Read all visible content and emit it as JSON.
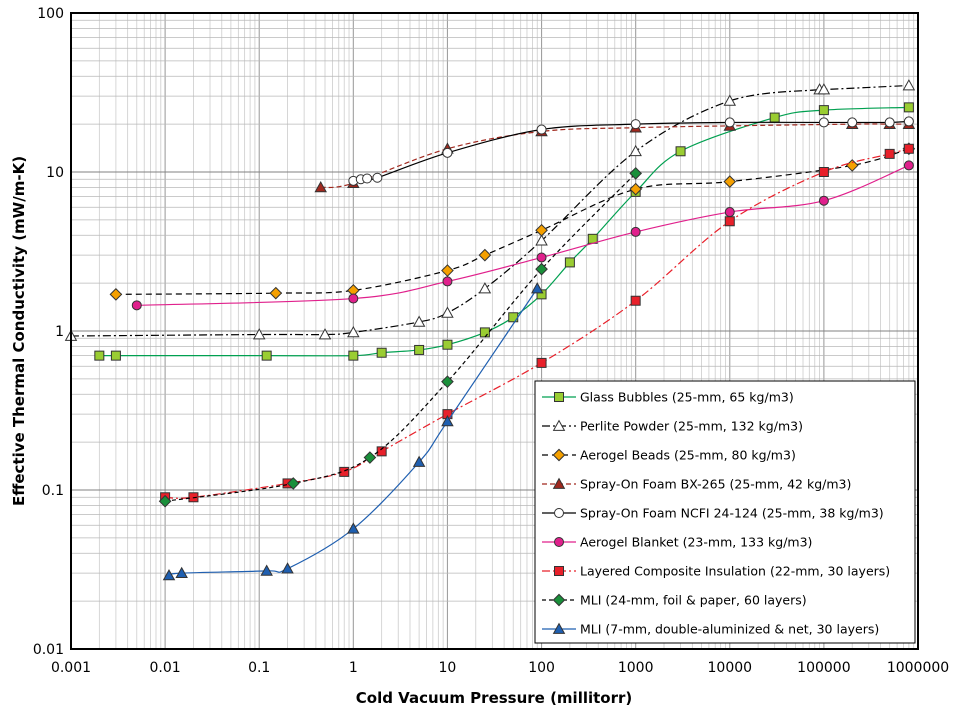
{
  "chart_data": {
    "type": "line",
    "xlabel": "Cold Vacuum Pressure (millitorr)",
    "ylabel": "Effective Thermal Conductivity (mW/m-K)",
    "xscale": "log",
    "yscale": "log",
    "xlim": [
      0.001,
      1000000
    ],
    "ylim": [
      0.01,
      100
    ],
    "x_ticks": [
      "0.001",
      "0.01",
      "0.1",
      "1",
      "10",
      "100",
      "1000",
      "10000",
      "100000",
      "1000000"
    ],
    "y_ticks": [
      "0.01",
      "0.1",
      "1",
      "10",
      "100"
    ],
    "grid": true,
    "legend_position": "bottom-right",
    "series": [
      {
        "name": "Glass Bubbles (25-mm, 65 kg/m3)",
        "color": "#9acd32",
        "line_color": "#00a050",
        "dash": "solid",
        "marker": "square",
        "marker_fill": "#9acd32",
        "points": [
          [
            0.002,
            0.7
          ],
          [
            0.003,
            0.7
          ],
          [
            0.12,
            0.7
          ],
          [
            1,
            0.7
          ],
          [
            2,
            0.73
          ],
          [
            5,
            0.76
          ],
          [
            10,
            0.82
          ],
          [
            25,
            0.98
          ],
          [
            50,
            1.22
          ],
          [
            100,
            1.7
          ],
          [
            200,
            2.7
          ],
          [
            350,
            3.8
          ],
          [
            1000,
            7.5
          ],
          [
            3000,
            13.5
          ],
          [
            30000,
            22
          ],
          [
            100000,
            24.5
          ],
          [
            800000,
            25.5
          ]
        ]
      },
      {
        "name": "Perlite Powder (25-mm, 132 kg/m3)",
        "color": "#ffffff",
        "line_color": "#000000",
        "dash": "8,3,2,3",
        "marker": "triangle",
        "marker_fill": "#ffffff",
        "points": [
          [
            0.001,
            0.93
          ],
          [
            0.1,
            0.95
          ],
          [
            0.5,
            0.95
          ],
          [
            1,
            0.98
          ],
          [
            5,
            1.14
          ],
          [
            10,
            1.3
          ],
          [
            25,
            1.85
          ],
          [
            100,
            3.7
          ],
          [
            1000,
            13.5
          ],
          [
            10000,
            28
          ],
          [
            90000,
            33
          ],
          [
            100000,
            33
          ],
          [
            800000,
            35
          ]
        ]
      },
      {
        "name": "Aerogel Beads (25-mm, 80 kg/m3)",
        "color": "#f5a000",
        "line_color": "#000000",
        "dash": "6,4",
        "marker": "diamond",
        "marker_fill": "#f5a000",
        "points": [
          [
            0.003,
            1.7
          ],
          [
            0.15,
            1.73
          ],
          [
            1,
            1.8
          ],
          [
            10,
            2.4
          ],
          [
            25,
            3.0
          ],
          [
            100,
            4.3
          ],
          [
            1000,
            7.8
          ],
          [
            10000,
            8.7
          ],
          [
            200000,
            11
          ],
          [
            800000,
            14
          ]
        ]
      },
      {
        "name": "Spray-On Foam BX-265 (25-mm, 42 kg/m3)",
        "color": "#a0281e",
        "line_color": "#a0281e",
        "dash": "5,3",
        "marker": "triangle",
        "marker_fill": "#a0281e",
        "points": [
          [
            0.45,
            8
          ],
          [
            1,
            8.5
          ],
          [
            10,
            14
          ],
          [
            100,
            18
          ],
          [
            1000,
            19
          ],
          [
            10000,
            19.5
          ],
          [
            200000,
            20
          ],
          [
            500000,
            20
          ],
          [
            800000,
            20
          ]
        ]
      },
      {
        "name": "Spray-On Foam NCFI 24-124 (25-mm, 38 kg/m3)",
        "color": "#ffffff",
        "line_color": "#000000",
        "dash": "solid",
        "marker": "circle",
        "marker_fill": "#ffffff",
        "points": [
          [
            1,
            8.8
          ],
          [
            1.2,
            9
          ],
          [
            1.4,
            9.1
          ],
          [
            1.8,
            9.2
          ],
          [
            10,
            13.2
          ],
          [
            100,
            18.5
          ],
          [
            1000,
            20
          ],
          [
            10000,
            20.5
          ],
          [
            100000,
            20.5
          ],
          [
            200000,
            20.5
          ],
          [
            500000,
            20.5
          ],
          [
            800000,
            20.8
          ]
        ]
      },
      {
        "name": "Aerogel Blanket (23-mm, 133 kg/m3)",
        "color": "#e0208c",
        "line_color": "#e0208c",
        "dash": "solid",
        "marker": "circle",
        "marker_fill": "#e0208c",
        "points": [
          [
            0.005,
            1.45
          ],
          [
            1,
            1.6
          ],
          [
            10,
            2.05
          ],
          [
            100,
            2.9
          ],
          [
            1000,
            4.2
          ],
          [
            10000,
            5.6
          ],
          [
            100000,
            6.6
          ],
          [
            800000,
            11
          ]
        ]
      },
      {
        "name": "Layered Composite Insulation (22-mm, 30 layers)",
        "color": "#e8202a",
        "line_color": "#e8202a",
        "dash": "8,3,2,3",
        "marker": "square",
        "marker_fill": "#e8202a",
        "points": [
          [
            0.01,
            0.09
          ],
          [
            0.02,
            0.09
          ],
          [
            0.2,
            0.11
          ],
          [
            0.8,
            0.13
          ],
          [
            2,
            0.175
          ],
          [
            10,
            0.3
          ],
          [
            100,
            0.63
          ],
          [
            1000,
            1.55
          ],
          [
            10000,
            4.9
          ],
          [
            100000,
            10
          ],
          [
            500000,
            13
          ],
          [
            800000,
            14
          ]
        ]
      },
      {
        "name": "MLI (24-mm, foil & paper, 60 layers)",
        "color": "#1a8f3a",
        "line_color": "#000000",
        "dash": "4,3",
        "marker": "diamond",
        "marker_fill": "#1a8f3a",
        "points": [
          [
            0.01,
            0.085
          ],
          [
            0.23,
            0.11
          ],
          [
            1.5,
            0.16
          ],
          [
            10,
            0.48
          ],
          [
            100,
            2.45
          ],
          [
            1000,
            9.8
          ]
        ]
      },
      {
        "name": "MLI (7-mm, double-aluminized & net, 30 layers)",
        "color": "#1f5fb0",
        "line_color": "#1f5fb0",
        "dash": "solid",
        "marker": "triangle",
        "marker_fill": "#1f5fb0",
        "points": [
          [
            0.011,
            0.029
          ],
          [
            0.015,
            0.03
          ],
          [
            0.12,
            0.031
          ],
          [
            0.2,
            0.032
          ],
          [
            1,
            0.057
          ],
          [
            5,
            0.15
          ],
          [
            10,
            0.27
          ],
          [
            90,
            1.85
          ]
        ]
      }
    ]
  }
}
